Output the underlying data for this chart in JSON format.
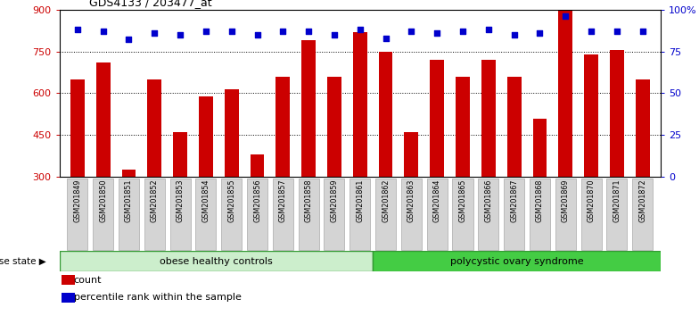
{
  "title": "GDS4133 / 203477_at",
  "samples": [
    "GSM201849",
    "GSM201850",
    "GSM201851",
    "GSM201852",
    "GSM201853",
    "GSM201854",
    "GSM201855",
    "GSM201856",
    "GSM201857",
    "GSM201858",
    "GSM201859",
    "GSM201861",
    "GSM201862",
    "GSM201863",
    "GSM201864",
    "GSM201865",
    "GSM201866",
    "GSM201867",
    "GSM201868",
    "GSM201869",
    "GSM201870",
    "GSM201871",
    "GSM201872"
  ],
  "counts": [
    650,
    710,
    325,
    650,
    460,
    590,
    615,
    380,
    660,
    790,
    660,
    820,
    750,
    460,
    720,
    660,
    720,
    660,
    510,
    900,
    740,
    755,
    650
  ],
  "percentiles": [
    88,
    87,
    82,
    86,
    85,
    87,
    87,
    85,
    87,
    87,
    85,
    88,
    83,
    87,
    86,
    87,
    88,
    85,
    86,
    96,
    87,
    87,
    87
  ],
  "group1_label": "obese healthy controls",
  "group1_count": 12,
  "group2_label": "polycystic ovary syndrome",
  "disease_state_label": "disease state",
  "legend_count_label": "count",
  "legend_pct_label": "percentile rank within the sample",
  "bar_color": "#cc0000",
  "dot_color": "#0000cc",
  "group1_bg": "#cceecc",
  "group2_bg": "#44cc44",
  "group_edge": "#339933",
  "y_min": 300,
  "y_max": 900,
  "yticks_left": [
    300,
    450,
    600,
    750,
    900
  ],
  "yticks_right": [
    0,
    25,
    50,
    75,
    100
  ],
  "title_fontsize": 9,
  "bar_width": 0.55,
  "dot_size": 16
}
